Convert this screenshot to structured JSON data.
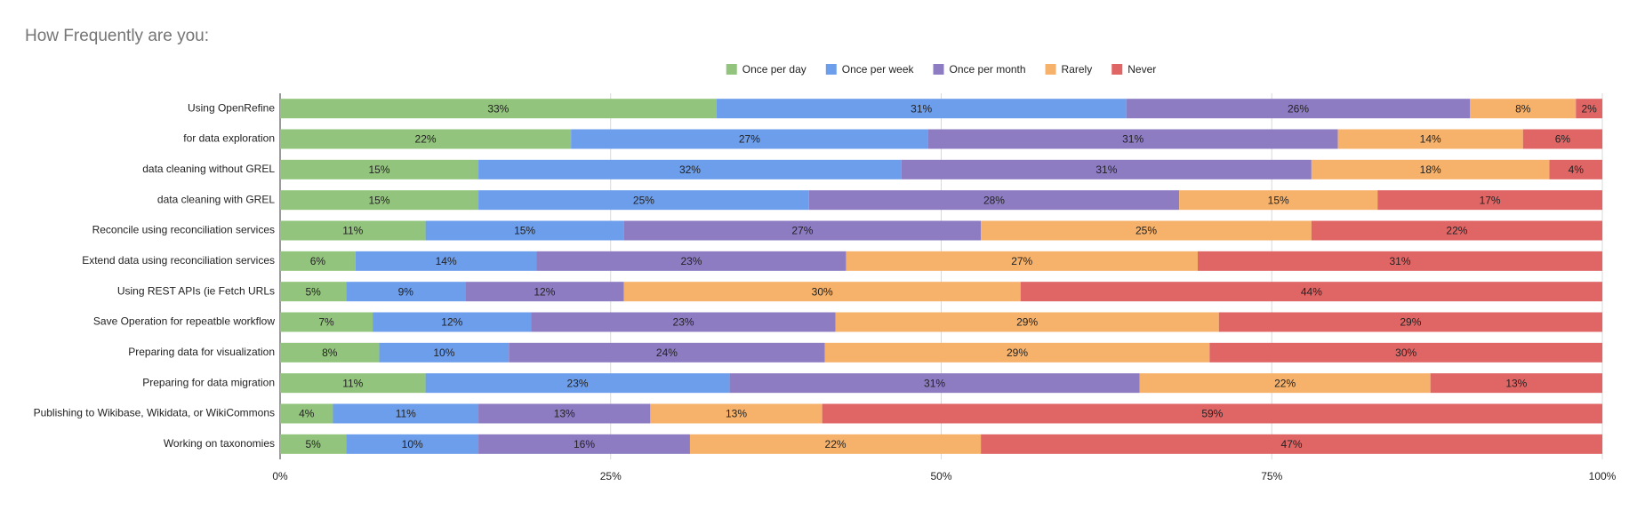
{
  "chart_data": {
    "type": "stacked-bar-horizontal",
    "title": "How Frequently are you:",
    "categories": [
      "Using OpenRefine",
      "for data exploration",
      "data cleaning without GREL",
      "data cleaning with GREL",
      "Reconcile using reconciliation services",
      "Extend data using reconciliation services",
      "Using REST APIs (ie Fetch URLs",
      "Save Operation for repeatble workflow",
      "Preparing data for visualization",
      "Preparing for data migration",
      "Publishing to Wikibase, Wikidata, or WikiCommons",
      "Working on taxonomies"
    ],
    "series": [
      {
        "name": "Once per day",
        "color": "#93c47d",
        "values": [
          33,
          22,
          15,
          15,
          11,
          5.7,
          5,
          7,
          7.5,
          11,
          4,
          5
        ],
        "value_labels": [
          "33%",
          "22%",
          "15%",
          "15%",
          "11%",
          "6%",
          "5%",
          "7%",
          "8%",
          "11%",
          "4%",
          "5%"
        ]
      },
      {
        "name": "Once per week",
        "color": "#6d9eeb",
        "values": [
          31,
          27,
          32,
          25,
          15,
          13.7,
          9,
          12,
          9.8,
          23,
          11,
          10
        ],
        "value_labels": [
          "31%",
          "27%",
          "32%",
          "25%",
          "15%",
          "14%",
          "9%",
          "12%",
          "10%",
          "23%",
          "11%",
          "10%"
        ]
      },
      {
        "name": "Once per month",
        "color": "#8e7cc3",
        "values": [
          26,
          31,
          31,
          28,
          27,
          23.4,
          12,
          23,
          23.9,
          31,
          13,
          16
        ],
        "value_labels": [
          "26%",
          "31%",
          "31%",
          "28%",
          "27%",
          "23%",
          "12%",
          "23%",
          "24%",
          "31%",
          "13%",
          "16%"
        ]
      },
      {
        "name": "Rarely",
        "color": "#f6b26b",
        "values": [
          8,
          14,
          18,
          15,
          25,
          26.6,
          30,
          29,
          29.1,
          22,
          13,
          22
        ],
        "value_labels": [
          "8%",
          "14%",
          "18%",
          "15%",
          "25%",
          "27%",
          "30%",
          "29%",
          "29%",
          "22%",
          "13%",
          "22%"
        ]
      },
      {
        "name": "Never",
        "color": "#e06666",
        "values": [
          2,
          6,
          4,
          17,
          22,
          30.6,
          44,
          29,
          29.7,
          13,
          59,
          47
        ],
        "value_labels": [
          "2%",
          "6%",
          "4%",
          "17%",
          "22%",
          "31%",
          "44%",
          "29%",
          "30%",
          "13%",
          "59%",
          "47%"
        ]
      }
    ],
    "xlim": [
      0,
      100
    ],
    "xticks": [
      {
        "value": 0,
        "label": "0%"
      },
      {
        "value": 25,
        "label": "25%"
      },
      {
        "value": 50,
        "label": "50%"
      },
      {
        "value": 75,
        "label": "75%"
      },
      {
        "value": 100,
        "label": "100%"
      }
    ],
    "grid": true,
    "legend": "top"
  }
}
